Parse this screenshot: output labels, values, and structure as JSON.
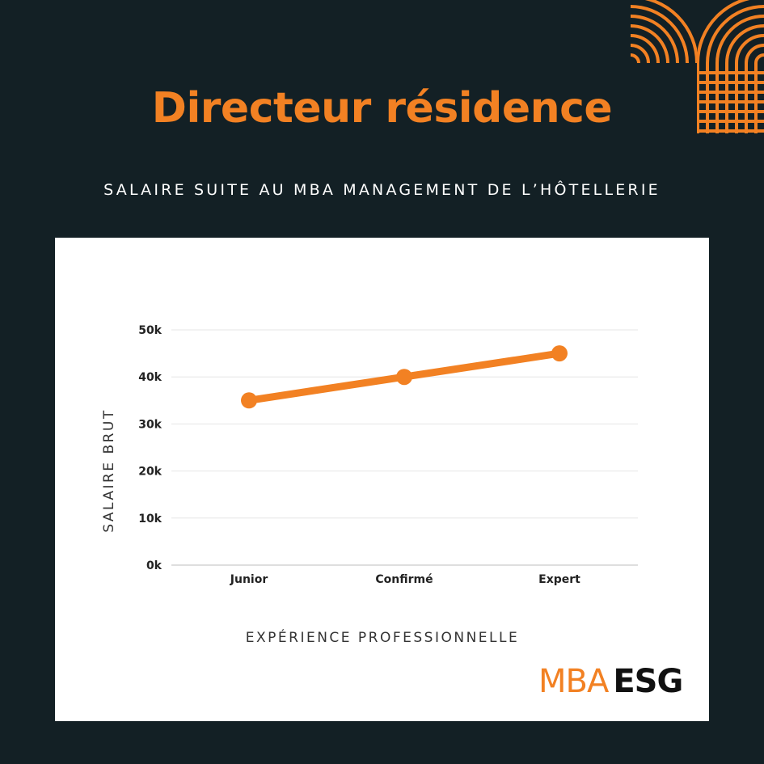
{
  "header": {
    "title": "Directeur résidence",
    "subtitle": "SALAIRE SUITE AU MBA MANAGEMENT DE L’HÔTELLERIE"
  },
  "colors": {
    "background": "#132025",
    "accent": "#f28123",
    "card": "#ffffff",
    "grid": "#e6e6e6"
  },
  "chart_data": {
    "type": "line",
    "title": "",
    "xlabel": "EXPÉRIENCE PROFESSIONNELLE",
    "ylabel": "SALAIRE BRUT",
    "categories": [
      "Junior",
      "Confirmé",
      "Expert"
    ],
    "series": [
      {
        "values": [
          35000,
          40000,
          45000
        ]
      }
    ],
    "ylim": [
      0,
      50000
    ],
    "yticks": [
      0,
      10000,
      20000,
      30000,
      40000,
      50000
    ],
    "ytick_labels": [
      "0k",
      "10k",
      "20k",
      "30k",
      "40k",
      "50k"
    ],
    "grid": true,
    "legend": "none"
  },
  "logo": {
    "part1": "MBA",
    "part2": "ESG"
  }
}
